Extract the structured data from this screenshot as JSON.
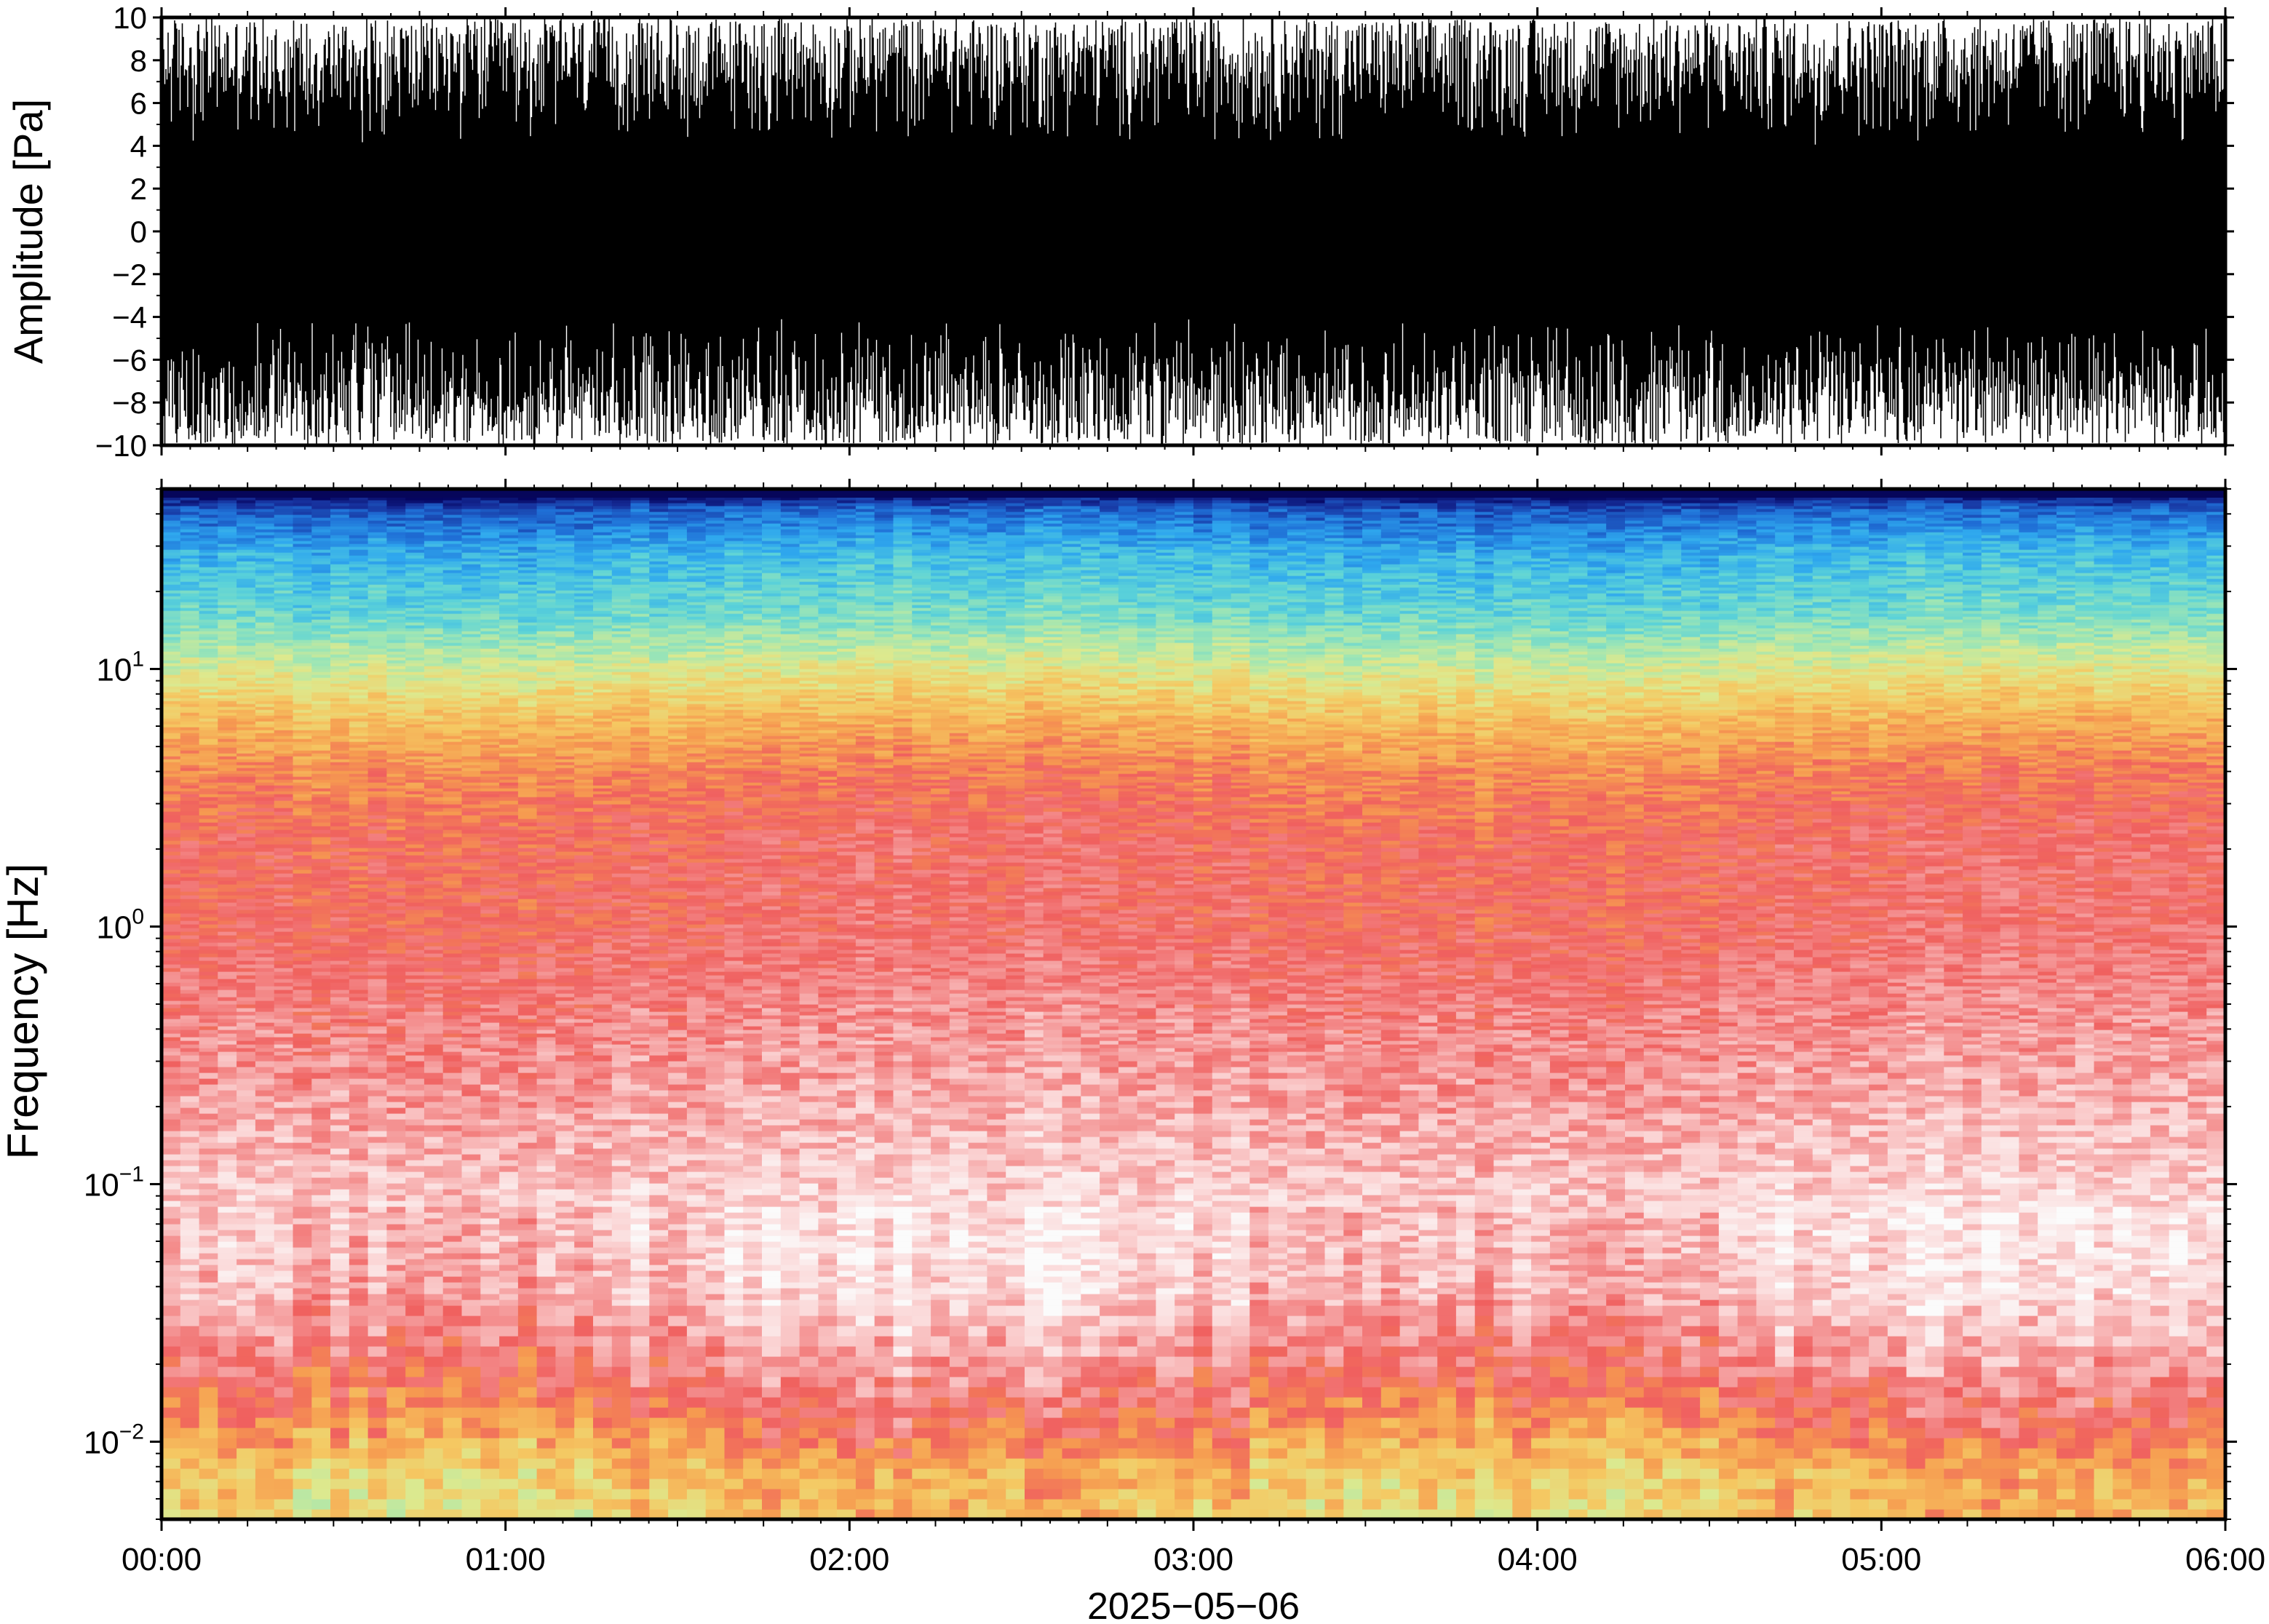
{
  "chart_data": [
    {
      "type": "line",
      "panel": "waveform",
      "ylabel": "Amplitude [Pa]",
      "ylim": [
        -10,
        10
      ],
      "yticks": [
        10,
        8,
        6,
        4,
        2,
        0,
        -2,
        -4,
        -6,
        -8,
        -10
      ],
      "ytick_labels": [
        "10",
        "8",
        "6",
        "4",
        "2",
        "0",
        "−2",
        "−4",
        "−6",
        "−8",
        "−10"
      ],
      "xlim_hours": [
        0,
        6
      ],
      "trace_color": "#000000",
      "description_envelope": {
        "typical_core_range": [
          -4,
          4
        ],
        "clipped_at": [
          -10,
          10
        ]
      }
    },
    {
      "type": "heatmap",
      "panel": "spectrogram",
      "ylabel": "Frequency [Hz]",
      "yscale": "log",
      "ylim": [
        0.005,
        50
      ],
      "yticks": [
        0.01,
        0.1,
        1,
        10
      ],
      "ytick_labels": [
        {
          "base": "10",
          "exp": "−2"
        },
        {
          "base": "10",
          "exp": "−1"
        },
        {
          "base": "10",
          "exp": "0"
        },
        {
          "base": "10",
          "exp": "1"
        }
      ],
      "xlim_hours": [
        0,
        6
      ],
      "xtick_labels": [
        "00:00",
        "01:00",
        "02:00",
        "03:00",
        "04:00",
        "05:00",
        "06:00"
      ],
      "xlabel": "2025−05−06",
      "colormap": [
        "#fbfbfb",
        "#fbd7d7",
        "#f59c9c",
        "#f0605f",
        "#f69b50",
        "#f5c862",
        "#dde98e",
        "#9fe6b4",
        "#5cd3d8",
        "#2fa8ee",
        "#1f6fd6",
        "#162e9a",
        "#050560"
      ]
    }
  ]
}
